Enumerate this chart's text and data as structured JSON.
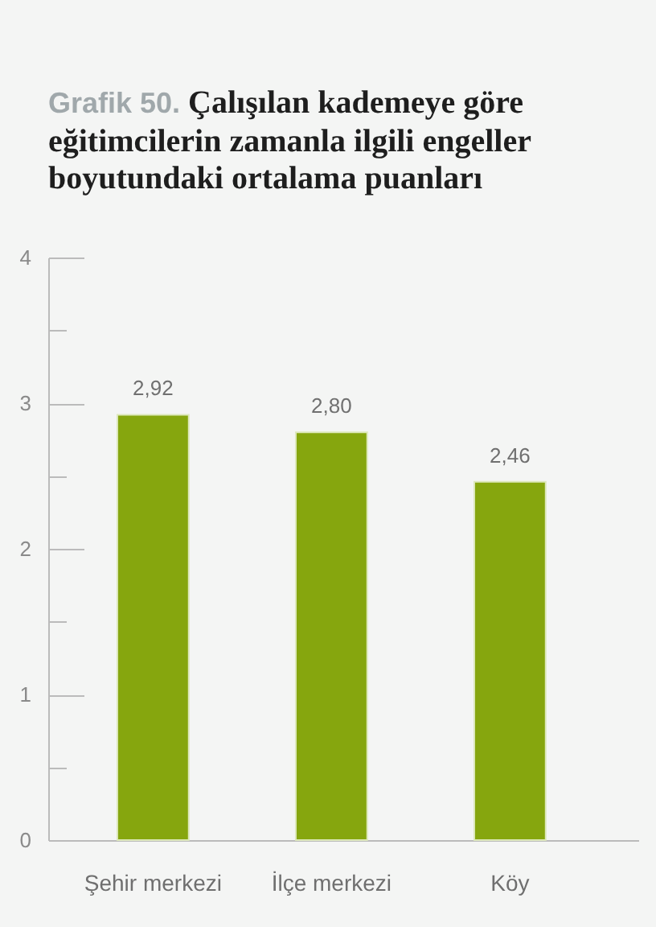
{
  "chart_data": {
    "type": "bar",
    "title": "Grafik 50. Çalışılan kademeye göre eğitimcilerin zamanla ilgili engeller boyutundaki ortalama puanları",
    "categories": [
      "Şehir merkezi",
      "İlçe merkezi",
      "Köy"
    ],
    "values": [
      2.92,
      2.8,
      2.46
    ],
    "value_labels": [
      "2,92",
      "2,80",
      "2,46"
    ],
    "color": "#86a60e",
    "ylim": [
      0,
      4
    ],
    "yticks": [
      0,
      {
        "value": 0.5,
        "label": null
      },
      1,
      {
        "value": 1.5,
        "label": null
      },
      2,
      {
        "value": 2.5,
        "label": null
      },
      3,
      {
        "value": 3.5,
        "label": null
      },
      4
    ],
    "grid": false
  }
}
